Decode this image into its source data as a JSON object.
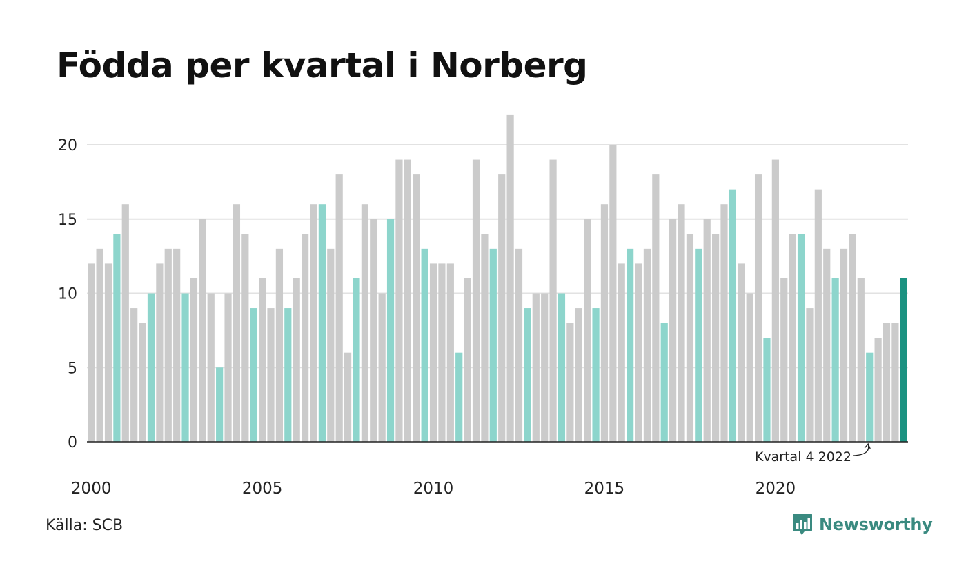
{
  "title": "Födda per kvartal i Norberg",
  "source": "Källa: SCB",
  "brand": {
    "name": "Newsworthy",
    "icon": "bar-chart-speech-bubble-icon"
  },
  "colors": {
    "grey_bar": "#cbcbcb",
    "q4_bar": "#8dd5cc",
    "highlight_bar": "#1b9281",
    "gridline": "#e2e2e2",
    "axis": "#222222"
  },
  "chart_data": {
    "type": "bar",
    "title": "Födda per kvartal i Norberg",
    "x_start": {
      "year": 2000,
      "quarter": 1
    },
    "x_tick_labels": [
      "2000",
      "2005",
      "2010",
      "2015",
      "2020"
    ],
    "y_ticks": [
      0,
      5,
      10,
      15,
      20
    ],
    "ylim": [
      0,
      22
    ],
    "grid": true,
    "highlight": "last",
    "values": [
      12,
      13,
      12,
      14,
      16,
      9,
      8,
      10,
      12,
      13,
      13,
      10,
      11,
      15,
      10,
      5,
      10,
      16,
      14,
      9,
      11,
      9,
      13,
      9,
      11,
      14,
      16,
      16,
      13,
      18,
      6,
      11,
      16,
      15,
      10,
      15,
      19,
      19,
      18,
      13,
      12,
      12,
      12,
      6,
      11,
      19,
      14,
      13,
      18,
      22,
      13,
      9,
      10,
      10,
      19,
      10,
      8,
      9,
      15,
      9,
      16,
      20,
      12,
      13,
      12,
      13,
      18,
      8,
      15,
      16,
      14,
      13,
      15,
      14,
      16,
      17,
      12,
      10,
      18,
      7,
      19,
      11,
      14,
      14,
      9,
      17,
      13,
      11,
      13,
      14,
      11,
      6,
      7,
      8,
      8,
      11
    ],
    "annotation": {
      "text": "Kvartal 4 2022",
      "target_index": 91
    }
  }
}
